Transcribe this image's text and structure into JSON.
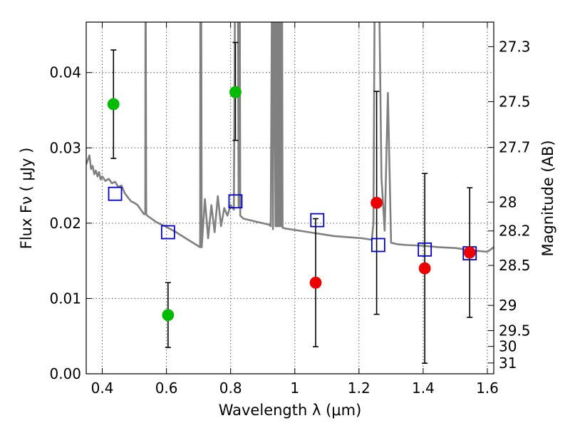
{
  "chart_data": {
    "type": "scatter",
    "xlabel": "Wavelength  λ (μm)",
    "ylabel": "Flux  Fν  ( μJy )",
    "y2label": "Magnitude (AB)",
    "xlim": [
      0.35,
      1.62
    ],
    "ylim": [
      0.0,
      0.0467
    ],
    "grid": true,
    "x_ticks": [
      0.4,
      0.6,
      0.8,
      1.0,
      1.2,
      1.4,
      1.6
    ],
    "x_tick_labels": [
      "0.4",
      "0.6",
      "0.8",
      "1",
      "1.2",
      "1.4",
      "1.6"
    ],
    "y_ticks": [
      0.0,
      0.01,
      0.02,
      0.03,
      0.04
    ],
    "y_tick_labels": [
      "0.00",
      "0.01",
      "0.02",
      "0.03",
      "0.04"
    ],
    "y2_ticks": [
      {
        "label": "27.3",
        "flux": 0.04344
      },
      {
        "label": "27.5",
        "flux": 0.03614
      },
      {
        "label": "27.7",
        "flux": 0.03006
      },
      {
        "label": "28",
        "flux": 0.0228
      },
      {
        "label": "28.2",
        "flux": 0.01897
      },
      {
        "label": "28.5",
        "flux": 0.01439
      },
      {
        "label": "29",
        "flux": 0.00908
      },
      {
        "label": "29.5",
        "flux": 0.00573
      },
      {
        "label": "30",
        "flux": 0.00363
      },
      {
        "label": "31",
        "flux": 0.00144
      }
    ],
    "colors": {
      "green": "#00bb00",
      "red": "#ee0000",
      "model_points": "#0000cc",
      "template": "#808080",
      "errorbar": "#000000",
      "grid": "#555555"
    },
    "series": [
      {
        "marker": "circle",
        "color": "green",
        "points": [
          {
            "x": 0.435,
            "y": 0.0358,
            "err_low": 0.0286,
            "err_high": 0.043
          },
          {
            "x": 0.605,
            "y": 0.0078,
            "err_low": 0.0035,
            "err_high": 0.0121
          },
          {
            "x": 0.815,
            "y": 0.0374,
            "err_low": 0.031,
            "err_high": 0.044
          }
        ]
      },
      {
        "marker": "circle",
        "color": "red",
        "points": [
          {
            "x": 1.065,
            "y": 0.0121,
            "err_low": 0.0036,
            "err_high": 0.0206
          },
          {
            "x": 1.255,
            "y": 0.0227,
            "err_low": 0.0079,
            "err_high": 0.0375
          },
          {
            "x": 1.405,
            "y": 0.014,
            "err_low": 0.0014,
            "err_high": 0.0266
          },
          {
            "x": 1.545,
            "y": 0.0161,
            "err_low": 0.0075,
            "err_high": 0.0247
          }
        ]
      },
      {
        "marker": "open-square",
        "color": "model_points",
        "points": [
          {
            "x": 0.44,
            "y": 0.0239
          },
          {
            "x": 0.605,
            "y": 0.0188
          },
          {
            "x": 0.815,
            "y": 0.0229
          },
          {
            "x": 1.07,
            "y": 0.0204
          },
          {
            "x": 1.26,
            "y": 0.0171
          },
          {
            "x": 1.405,
            "y": 0.0165
          },
          {
            "x": 1.545,
            "y": 0.016
          }
        ]
      },
      {
        "type": "line",
        "color": "template",
        "x": [
          0.35,
          0.36,
          0.365,
          0.37,
          0.375,
          0.38,
          0.385,
          0.39,
          0.395,
          0.4,
          0.41,
          0.42,
          0.43,
          0.44,
          0.45,
          0.46,
          0.47,
          0.48,
          0.49,
          0.5,
          0.51,
          0.52,
          0.53,
          0.534,
          0.535,
          0.537,
          0.54,
          0.55,
          0.57,
          0.6,
          0.63,
          0.66,
          0.69,
          0.705,
          0.706,
          0.708,
          0.71,
          0.72,
          0.73,
          0.74,
          0.75,
          0.76,
          0.77,
          0.78,
          0.79,
          0.8,
          0.81,
          0.815,
          0.822,
          0.825,
          0.828,
          0.83,
          0.84,
          0.86,
          0.88,
          0.9,
          0.92,
          0.925,
          0.93,
          0.932,
          0.935,
          0.94,
          0.942,
          0.944,
          0.946,
          0.948,
          0.95,
          0.952,
          0.955,
          0.957,
          0.96,
          0.962,
          0.97,
          1.0,
          1.03,
          1.06,
          1.09,
          1.12,
          1.15,
          1.18,
          1.21,
          1.24,
          1.245,
          1.25,
          1.255,
          1.26,
          1.27,
          1.28,
          1.29,
          1.3,
          1.31,
          1.32,
          1.35,
          1.4,
          1.45,
          1.5,
          1.55,
          1.6,
          1.62
        ],
        "y": [
          0.0278,
          0.029,
          0.0272,
          0.0276,
          0.0265,
          0.027,
          0.0262,
          0.0268,
          0.0258,
          0.0262,
          0.0256,
          0.0259,
          0.0253,
          0.0255,
          0.0248,
          0.025,
          0.024,
          0.0234,
          0.0229,
          0.0227,
          0.0224,
          0.0218,
          0.0212,
          0.0212,
          0.06,
          0.0212,
          0.021,
          0.0207,
          0.0201,
          0.0195,
          0.0188,
          0.018,
          0.0172,
          0.0168,
          0.06,
          0.06,
          0.0168,
          0.0232,
          0.018,
          0.0224,
          0.0188,
          0.0236,
          0.0196,
          0.022,
          0.021,
          0.0224,
          0.0218,
          0.06,
          0.06,
          0.0222,
          0.06,
          0.021,
          0.0206,
          0.0204,
          0.0202,
          0.02,
          0.0198,
          0.0196,
          0.06,
          0.0192,
          0.06,
          0.0196,
          0.06,
          0.0196,
          0.06,
          0.0196,
          0.06,
          0.0196,
          0.06,
          0.0196,
          0.06,
          0.0194,
          0.0193,
          0.0191,
          0.0189,
          0.0187,
          0.0185,
          0.0183,
          0.0182,
          0.0181,
          0.018,
          0.0178,
          0.02,
          0.06,
          0.06,
          0.06,
          0.026,
          0.019,
          0.0373,
          0.0174,
          0.0173,
          0.0172,
          0.0171,
          0.017,
          0.0168,
          0.0167,
          0.0164,
          0.0162,
          0.0168
        ]
      }
    ]
  }
}
